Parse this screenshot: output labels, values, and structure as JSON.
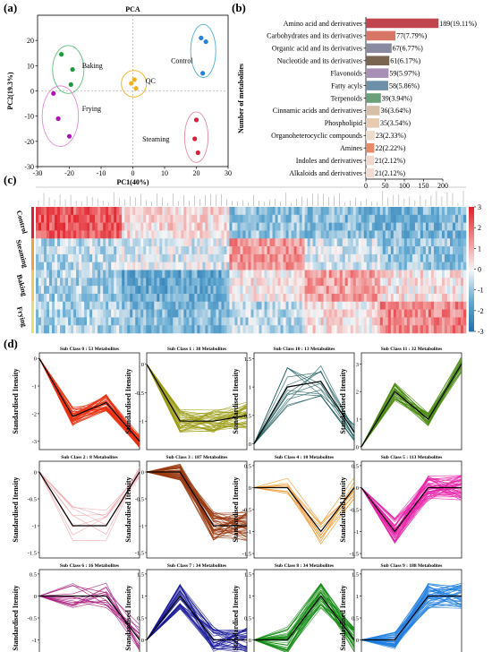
{
  "panel_labels": {
    "a": "(a)",
    "b": "(b)",
    "c": "(c)",
    "d": "(d)"
  },
  "chart_data": [
    {
      "id": "pca",
      "type": "scatter",
      "title": "PCA",
      "xlabel": "PC1(40%)",
      "ylabel": "PC2(19.3%)",
      "xlim": [
        -30,
        30
      ],
      "ylim": [
        -30,
        30
      ],
      "xticks": [
        -30,
        -20,
        -10,
        0,
        10,
        20,
        30
      ],
      "yticks": [
        -30,
        -20,
        -10,
        0,
        10,
        20
      ],
      "series": [
        {
          "name": "Control",
          "color": "#2a7fd8",
          "ellipse": "#4fb0d8",
          "label_pos": [
            12,
            11
          ],
          "points": [
            [
              21.5,
              21
            ],
            [
              23,
              19.5
            ],
            [
              22,
              7
            ]
          ]
        },
        {
          "name": "Baking",
          "color": "#1a9a3a",
          "ellipse": "#5cbf7a",
          "label_pos": [
            -16,
            9
          ],
          "points": [
            [
              -22.5,
              14.5
            ],
            [
              -19,
              8.5
            ],
            [
              -19.5,
              2.5
            ]
          ]
        },
        {
          "name": "QC",
          "color": "#f0b020",
          "ellipse": "#f0b020",
          "label_pos": [
            4,
            3
          ],
          "points": [
            [
              0.5,
              4.5
            ],
            [
              -0.5,
              3
            ],
            [
              1,
              1
            ]
          ]
        },
        {
          "name": "Frying",
          "color": "#b010b8",
          "ellipse": "#e38ad8",
          "label_pos": [
            -16,
            -8
          ],
          "points": [
            [
              -25,
              -1
            ],
            [
              -23.5,
              -11
            ],
            [
              -20,
              -18
            ]
          ]
        },
        {
          "name": "Steaming",
          "color": "#d8203a",
          "ellipse": "#e68aa0",
          "label_pos": [
            3,
            -20
          ],
          "points": [
            [
              20,
              -11.5
            ],
            [
              19.5,
              -19
            ],
            [
              20.5,
              -24.5
            ]
          ]
        }
      ]
    },
    {
      "id": "classes",
      "type": "bar",
      "xlabel": "Number of metabolites",
      "xlim": [
        0,
        200
      ],
      "xticks": [
        0,
        50,
        100,
        150,
        200
      ],
      "categories": [
        "Amino acid and derivatives",
        "Carbohydrates and its derivatives",
        "Organic acid and its derivatives",
        "Nucleotide and its derivatives",
        "Flavonoids",
        "Fatty acyls",
        "Terpenoids",
        "Cinnamic acids and derivatives",
        "Phospholipid",
        "Organoheterocyclic compounds",
        "Amines",
        "Indoles and derivatives",
        "Alkaloids and derivatives"
      ],
      "values": [
        189,
        77,
        67,
        61,
        59,
        58,
        39,
        36,
        35,
        23,
        22,
        21,
        21
      ],
      "labels": [
        "189(19.11%)",
        "77(7.79%)",
        "67(6.77%)",
        "61(6.17%)",
        "59(5.97%)",
        "58(5.86%)",
        "39(3.94%)",
        "36(3.64%)",
        "35(3.54%)",
        "23(2.33%)",
        "22(2.22%)",
        "21(2.12%)",
        "21(2.12%)"
      ],
      "colors": [
        "#c0454f",
        "#d87565",
        "#8a8aa0",
        "#7a6650",
        "#a88fb5",
        "#6b90a8",
        "#6aa07a",
        "#d6bfa8",
        "#e8cab0",
        "#eddccc",
        "#e88a6a",
        "#f0d8cc",
        "#f2dccf"
      ]
    },
    {
      "id": "heatmap",
      "type": "heatmap",
      "rows": [
        "Control",
        "Steaming",
        "Baking",
        "Frying"
      ],
      "row_colors": [
        "#d8203a",
        "#f0a040",
        "#f0c860",
        "#e8e070"
      ],
      "colorbar_ticks": [
        3,
        2,
        1,
        0,
        -1,
        -2,
        -3
      ],
      "vmin": -3,
      "vmax": 3
    },
    {
      "id": "k-means",
      "type": "line",
      "categories": [
        "Control",
        "Steaming",
        "Baking",
        "Frying"
      ],
      "ylabel": "Standardised Itensity",
      "panels": [
        {
          "title": "Sub Class 0 : 53 Metabolites",
          "color": "#e83010",
          "ylim": [
            -3.3,
            0.2
          ],
          "yticks": [
            0,
            -1,
            -2,
            -3
          ],
          "yticklabels": [
            "0",
            "-1",
            "-2",
            "-3"
          ],
          "mean": [
            0,
            -2.1,
            -1.6,
            -3.0
          ],
          "spread": [
            0,
            0.35,
            0.3,
            0.25
          ],
          "n": 53
        },
        {
          "title": "Sub Class 1 : 38 Metabolites",
          "color": "#9a9a10",
          "ylim": [
            -1.5,
            0.2
          ],
          "yticks": [
            0,
            -0.5,
            -1
          ],
          "yticklabels": [
            "0",
            "-0.5",
            "-1"
          ],
          "mean": [
            0,
            -1.0,
            -1.0,
            -0.9
          ],
          "spread": [
            0,
            0.2,
            0.2,
            0.25
          ],
          "n": 38
        },
        {
          "title": "Sub Class 10 : 13 Metabolites",
          "color": "#1a5a5a",
          "ylim": [
            -0.1,
            1.6
          ],
          "yticks": [
            0,
            0.5,
            1,
            1.5
          ],
          "yticklabels": [
            "0",
            "0.5",
            "1",
            "1.5"
          ],
          "mean": [
            0,
            1.0,
            1.1,
            0.2
          ],
          "spread": [
            0,
            0.35,
            0.3,
            0.15
          ],
          "n": 13
        },
        {
          "title": "Sub Class 11 : 32 Metabolites",
          "color": "#4a8a10",
          "ylim": [
            -0.1,
            3.4
          ],
          "yticks": [
            0,
            1,
            2,
            3
          ],
          "yticklabels": [
            "0",
            "1",
            "2",
            "3"
          ],
          "mean": [
            0,
            2.0,
            1.0,
            3.0
          ],
          "spread": [
            0,
            0.35,
            0.25,
            0.3
          ],
          "n": 32
        },
        {
          "title": "Sub Class 2 : 8 Metabolites",
          "color": "#f0a0a8",
          "ylim": [
            -1.6,
            0.2
          ],
          "yticks": [
            0,
            -0.5,
            -1,
            -1.5
          ],
          "yticklabels": [
            "0",
            "-0.5",
            "-1",
            "-1.5"
          ],
          "mean": [
            0,
            -1.0,
            -1.0,
            0.0
          ],
          "spread": [
            0,
            0.4,
            0.35,
            0.1
          ],
          "n": 8
        },
        {
          "title": "Sub Class 3 : 187 Metabolites",
          "color": "#9a3a10",
          "ylim": [
            -1.6,
            0.2
          ],
          "yticks": [
            0,
            -0.5,
            -1,
            -1.5
          ],
          "yticklabels": [
            "0",
            "-0.5",
            "-1",
            "-1.5"
          ],
          "mean": [
            0,
            0.0,
            -1.0,
            -1.0
          ],
          "spread": [
            0,
            0.15,
            0.3,
            0.3
          ],
          "n": 187
        },
        {
          "title": "Sub Class 4 : 10 Metabolites",
          "color": "#f08a10",
          "ylim": [
            -1.6,
            0.6
          ],
          "yticks": [
            0.5,
            0,
            -0.5,
            -1,
            -1.5
          ],
          "yticklabels": [
            "0.5",
            "0",
            "-0.5",
            "-1",
            "-1.5"
          ],
          "mean": [
            0,
            0.0,
            -1.0,
            0.0
          ],
          "spread": [
            0,
            0.25,
            0.3,
            0.3
          ],
          "n": 10
        },
        {
          "title": "Sub Class 5 : 113 Metabolites",
          "color": "#e820a8",
          "ylim": [
            -1.6,
            0.6
          ],
          "yticks": [
            0.5,
            0,
            -0.5,
            -1,
            -1.5
          ],
          "yticklabels": [
            "0.5",
            "0",
            "-0.5",
            "-1",
            "-1.5"
          ],
          "mean": [
            0,
            -1.0,
            0.0,
            0.0
          ],
          "spread": [
            0,
            0.3,
            0.3,
            0.3
          ],
          "n": 113
        },
        {
          "title": "Sub Class 6 : 16 Metabolites",
          "color": "#a8187a",
          "ylim": [
            -1.6,
            0.6
          ],
          "yticks": [
            0.5,
            0,
            -0.5,
            -1,
            -1.5
          ],
          "yticklabels": [
            "0.5",
            "0",
            "-0.5",
            "-1",
            "-1.5"
          ],
          "mean": [
            0,
            0.0,
            0.0,
            -1.0
          ],
          "spread": [
            0,
            0.3,
            0.3,
            0.35
          ],
          "n": 16
        },
        {
          "title": "Sub Class 7 : 34 Metabolites",
          "color": "#1a1a9a",
          "ylim": [
            -0.6,
            1.6
          ],
          "yticks": [
            1.5,
            1,
            0.5,
            0,
            -0.5
          ],
          "yticklabels": [
            "1.5",
            "1",
            "0.5",
            "0",
            "-0.5"
          ],
          "mean": [
            0,
            1.0,
            0.0,
            0.0
          ],
          "spread": [
            0,
            0.3,
            0.3,
            0.3
          ],
          "n": 34
        },
        {
          "title": "Sub Class 8 : 34 Metabolites",
          "color": "#108a10",
          "ylim": [
            -0.6,
            1.6
          ],
          "yticks": [
            1.5,
            1,
            0.5,
            0,
            -0.5
          ],
          "yticklabels": [
            "1.5",
            "1",
            "0.5",
            "0",
            "-0.5"
          ],
          "mean": [
            0,
            0.0,
            1.0,
            0.0
          ],
          "spread": [
            0,
            0.3,
            0.3,
            0.3
          ],
          "n": 34
        },
        {
          "title": "Sub Class 9 : 188 Metabolites",
          "color": "#2080e0",
          "ylim": [
            -0.6,
            1.6
          ],
          "yticks": [
            1.5,
            1,
            0.5,
            0,
            -0.5
          ],
          "yticklabels": [
            "1.5",
            "1",
            "0.5",
            "0",
            "-0.5"
          ],
          "mean": [
            0,
            0.0,
            1.0,
            1.0
          ],
          "spread": [
            0,
            0.2,
            0.3,
            0.3
          ],
          "n": 188
        }
      ]
    }
  ]
}
